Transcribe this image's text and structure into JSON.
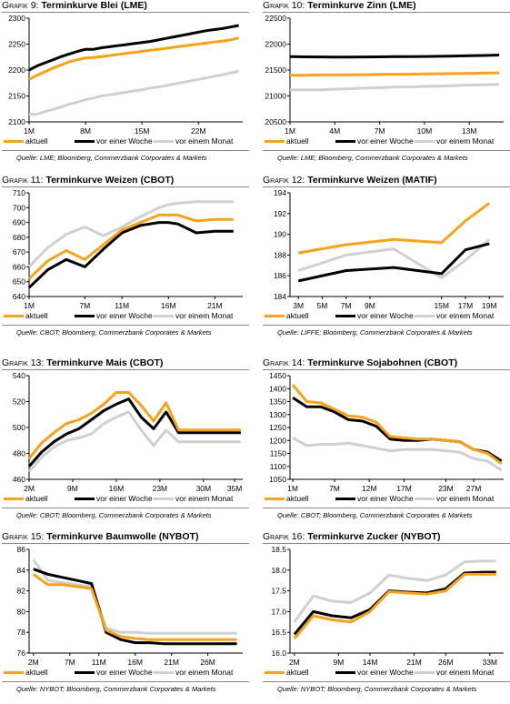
{
  "legend": {
    "series": [
      "aktuell",
      "vor einer Woche",
      "vor einem Monat"
    ]
  },
  "colors": {
    "aktuell": "#F7A21B",
    "vor einer Woche": "#000000",
    "vor einem Monat": "#D0D0D0"
  },
  "charts": [
    {
      "title_prefix": "Grafik 9:",
      "title": "Terminkurve Blei (LME)",
      "source": "Quelle: LME; Bloomberg, Commerzbank Corporates & Markets",
      "chart_data": {
        "type": "line",
        "x": [
          1,
          2,
          3,
          4,
          5,
          6,
          7,
          8,
          9,
          10,
          11,
          12,
          13,
          14,
          15,
          16,
          17,
          18,
          19,
          20,
          21,
          22,
          23,
          24,
          25,
          26,
          27
        ],
        "xticks": [
          1,
          8,
          15,
          22
        ],
        "xticklabels": [
          "1M",
          "8M",
          "15M",
          "22M"
        ],
        "xlim": [
          1,
          27.5
        ],
        "ylim": [
          2100,
          2300
        ],
        "yticks": [
          2100,
          2150,
          2200,
          2250,
          2300
        ],
        "yticklabels": [
          "2100",
          "2150",
          "2200",
          "2250",
          "2300"
        ],
        "series": [
          {
            "name": "aktuell",
            "values": [
              2182,
              2190,
              2197,
              2204,
              2210,
              2216,
              2220,
              2223,
              2224,
              2226,
              2228,
              2230,
              2232,
              2234,
              2236,
              2238,
              2240,
              2242,
              2244,
              2246,
              2248,
              2250,
              2252,
              2254,
              2256,
              2258,
              2262
            ]
          },
          {
            "name": "vor einer Woche",
            "values": [
              2200,
              2208,
              2214,
              2220,
              2226,
              2231,
              2236,
              2240,
              2240,
              2243,
              2245,
              2247,
              2249,
              2251,
              2253,
              2255,
              2258,
              2261,
              2264,
              2267,
              2270,
              2273,
              2276,
              2278,
              2280,
              2283,
              2286
            ]
          },
          {
            "name": "vor einem Monat",
            "values": [
              2114,
              2115,
              2120,
              2124,
              2129,
              2134,
              2138,
              2143,
              2146,
              2150,
              2152,
              2155,
              2157,
              2160,
              2162,
              2165,
              2167,
              2170,
              2173,
              2176,
              2179,
              2182,
              2185,
              2188,
              2191,
              2194,
              2198
            ]
          }
        ]
      }
    },
    {
      "title_prefix": "Grafik 10:",
      "title": "Terminkurve Zinn (LME)",
      "source": "Quelle: LME; Bloomberg, Commerzbank Corporates & Markets",
      "chart_data": {
        "type": "line",
        "x": [
          1,
          2,
          3,
          4,
          5,
          6,
          7,
          8,
          9,
          10,
          11,
          12,
          13,
          14,
          15
        ],
        "xticks": [
          1,
          4,
          7,
          10,
          13
        ],
        "xticklabels": [
          "1M",
          "4M",
          "7M",
          "10M",
          "13M"
        ],
        "xlim": [
          1,
          15.3
        ],
        "ylim": [
          20500,
          22500
        ],
        "yticks": [
          20500,
          21000,
          21500,
          22000,
          22500
        ],
        "yticklabels": [
          "20500",
          "21000",
          "21500",
          "22000",
          "22500"
        ],
        "series": [
          {
            "name": "aktuell",
            "values": [
              21400,
              21400,
              21405,
              21405,
              21408,
              21410,
              21415,
              21418,
              21420,
              21425,
              21428,
              21432,
              21435,
              21440,
              21445
            ]
          },
          {
            "name": "vor einer Woche",
            "values": [
              21760,
              21755,
              21752,
              21750,
              21750,
              21752,
              21755,
              21758,
              21760,
              21762,
              21765,
              21770,
              21775,
              21780,
              21790
            ]
          },
          {
            "name": "vor einem Monat",
            "values": [
              21120,
              21115,
              21120,
              21130,
              21140,
              21150,
              21160,
              21170,
              21175,
              21185,
              21190,
              21200,
              21210,
              21215,
              21225
            ]
          }
        ]
      }
    },
    {
      "title_prefix": "Grafik 11:",
      "title": "Terminkurve Weizen (CBOT)",
      "source": "Quelle: CBOT; Bloomberg, Commerzbank Corporates & Markets",
      "chart_data": {
        "type": "line",
        "x": [
          1,
          3,
          5,
          7,
          9,
          11,
          13,
          15,
          16,
          17,
          19,
          21,
          23
        ],
        "xticks": [
          1,
          7,
          11,
          16,
          21
        ],
        "xticklabels": [
          "1M",
          "7M",
          "11M",
          "16M",
          "21M"
        ],
        "xlim": [
          1,
          24
        ],
        "ylim": [
          640,
          710
        ],
        "yticks": [
          640,
          650,
          660,
          670,
          680,
          690,
          700,
          710
        ],
        "yticklabels": [
          "640",
          "650",
          "660",
          "670",
          "680",
          "690",
          "700",
          "710"
        ],
        "series": [
          {
            "name": "aktuell",
            "values": [
              652,
              664,
              671,
              665,
              675,
              685,
              690,
              695,
              695,
              695,
              691,
              692,
              692
            ]
          },
          {
            "name": "vor einer Woche",
            "values": [
              646,
              658,
              665,
              660,
              672,
              683,
              688,
              690,
              690,
              689,
              683,
              684,
              684
            ]
          },
          {
            "name": "vor einem Monat",
            "values": [
              660,
              673,
              682,
              687,
              681,
              687,
              694,
              700,
              702,
              703,
              704,
              704,
              704
            ]
          }
        ]
      }
    },
    {
      "title_prefix": "Grafik 12:",
      "title": "Terminkurve Weizen (MATIF)",
      "source": "Quelle: LIFFE; Bloomberg, Commerzbank Corporates & Markets",
      "chart_data": {
        "type": "line",
        "x": [
          3,
          7,
          11,
          15,
          17,
          19
        ],
        "xticks": [
          3,
          5,
          7,
          9,
          15,
          17,
          19
        ],
        "xticklabels": [
          "3M",
          "5M",
          "7M",
          "9M",
          "15M",
          "17M",
          "19M"
        ],
        "xlim": [
          2.3,
          20.2
        ],
        "ylim": [
          184,
          194
        ],
        "yticks": [
          184,
          186,
          188,
          190,
          192,
          194
        ],
        "yticklabels": [
          "184",
          "186",
          "188",
          "190",
          "192",
          "194"
        ],
        "series": [
          {
            "name": "aktuell",
            "values": [
              188.2,
              189,
              189.5,
              189.2,
              191.3,
              193
            ]
          },
          {
            "name": "vor einer Woche",
            "values": [
              185.5,
              186.5,
              186.8,
              186.2,
              188.5,
              189.1
            ]
          },
          {
            "name": "vor einem Monat",
            "values": [
              186.5,
              188,
              188.6,
              185.8,
              187.5,
              189.5
            ]
          }
        ]
      }
    },
    {
      "title_prefix": "Grafik 13:",
      "title": "Terminkurve Mais (CBOT)",
      "source": "Quelle: CBOT; Bloomberg, Commerzbank Corporates & Markets",
      "chart_data": {
        "type": "line",
        "x": [
          2,
          4,
          6,
          8,
          10,
          12,
          14,
          16,
          18,
          20,
          22,
          24,
          26,
          28,
          30,
          32,
          34,
          36
        ],
        "xticks": [
          2,
          9,
          16,
          23,
          30,
          35
        ],
        "xticklabels": [
          "2M",
          "9M",
          "16M",
          "23M",
          "30M",
          "35M"
        ],
        "xlim": [
          2,
          36.3
        ],
        "ylim": [
          460,
          540
        ],
        "yticks": [
          460,
          480,
          500,
          520,
          540
        ],
        "yticklabels": [
          "460",
          "480",
          "500",
          "520",
          "540"
        ],
        "series": [
          {
            "name": "aktuell",
            "values": [
              476,
              488,
              496,
              503,
              506,
              511,
              518,
              527,
              527,
              517,
              505,
              519,
              498,
              498,
              498,
              498,
              498,
              498
            ]
          },
          {
            "name": "vor einer Woche",
            "values": [
              470,
              481,
              489,
              495,
              499,
              506,
              513,
              518,
              522,
              508,
              499,
              512,
              496,
              496,
              496,
              496,
              496,
              496
            ]
          },
          {
            "name": "vor einem Monat",
            "values": [
              466,
              477,
              485,
              490,
              492,
              495,
              503,
              508,
              512,
              498,
              486,
              498,
              489,
              489,
              489,
              489,
              489,
              489
            ]
          }
        ]
      }
    },
    {
      "title_prefix": "Grafik 14:",
      "title": "Terminkurve Sojabohnen (CBOT)",
      "source": "Quelle: CBOT; Bloomberg, Commerzbank Corporates & Markets",
      "chart_data": {
        "type": "line",
        "x": [
          1,
          3,
          5,
          7,
          9,
          11,
          13,
          15,
          17,
          19,
          21,
          23,
          25,
          27,
          29,
          31
        ],
        "xticks": [
          1,
          7,
          12,
          17,
          23,
          27
        ],
        "xticklabels": [
          "1M",
          "7M",
          "12M",
          "17M",
          "23M",
          "27M"
        ],
        "xlim": [
          0.6,
          31.3
        ],
        "ylim": [
          1050,
          1450
        ],
        "yticks": [
          1050,
          1100,
          1150,
          1200,
          1250,
          1300,
          1350,
          1400,
          1450
        ],
        "yticklabels": [
          "1050",
          "1100",
          "1150",
          "1200",
          "1250",
          "1300",
          "1350",
          "1400",
          "1450"
        ],
        "series": [
          {
            "name": "aktuell",
            "values": [
              1415,
              1350,
              1345,
              1320,
              1295,
              1290,
              1270,
              1215,
              1210,
              1205,
              1205,
              1200,
              1195,
              1165,
              1150,
              1110
            ]
          },
          {
            "name": "vor einer Woche",
            "values": [
              1365,
              1330,
              1330,
              1310,
              1280,
              1275,
              1255,
              1205,
              1200,
              1200,
              1205,
              1200,
              1195,
              1165,
              1155,
              1120
            ]
          },
          {
            "name": "vor einem Monat",
            "values": [
              1210,
              1180,
              1185,
              1185,
              1190,
              1180,
              1170,
              1160,
              1165,
              1165,
              1165,
              1160,
              1155,
              1130,
              1120,
              1085
            ]
          }
        ]
      }
    },
    {
      "title_prefix": "Grafik 15:",
      "title": "Terminkurve Baumwolle (NYBOT)",
      "source": "Quelle: NYBOT; Bloomberg, Commerzbank Corporates & Markets",
      "chart_data": {
        "type": "line",
        "x": [
          2,
          4,
          6,
          8,
          10,
          12,
          14,
          16,
          18,
          20,
          22,
          24,
          26,
          28,
          30
        ],
        "xticks": [
          2,
          7,
          11,
          16,
          21,
          26
        ],
        "xticklabels": [
          "2M",
          "7M",
          "11M",
          "16M",
          "21M",
          "26M"
        ],
        "xlim": [
          1.4,
          30.8
        ],
        "ylim": [
          76,
          86
        ],
        "yticks": [
          76,
          78,
          80,
          82,
          84,
          86
        ],
        "yticklabels": [
          "76",
          "78",
          "80",
          "82",
          "84",
          "86"
        ],
        "series": [
          {
            "name": "aktuell",
            "values": [
              83.6,
              82.6,
              82.6,
              82.4,
              82.2,
              78.2,
              77.6,
              77.4,
              77.3,
              77.3,
              77.3,
              77.3,
              77.3,
              77.3,
              77.3
            ]
          },
          {
            "name": "vor einer Woche",
            "values": [
              84.1,
              83.6,
              83.3,
              83.0,
              82.7,
              78,
              77.3,
              77.0,
              77.0,
              76.9,
              76.9,
              76.9,
              76.9,
              76.9,
              76.9
            ]
          },
          {
            "name": "vor einem Monat",
            "values": [
              85,
              83,
              82.8,
              82.6,
              82.4,
              78.4,
              78,
              78,
              77.9,
              77.9,
              77.9,
              77.9,
              77.9,
              77.9,
              77.9
            ]
          }
        ]
      }
    },
    {
      "title_prefix": "Grafik 16:",
      "title": "Terminkurve Zucker (NYBOT)",
      "source": "Quelle: NYBOT; Bloomberg, Commerzbank Corporates & Markets",
      "chart_data": {
        "type": "line",
        "x": [
          2,
          5,
          8,
          11,
          14,
          17,
          20,
          23,
          26,
          29,
          32,
          34
        ],
        "xticks": [
          2,
          9,
          14,
          21,
          26,
          33
        ],
        "xticklabels": [
          "2M",
          "9M",
          "14M",
          "21M",
          "26M",
          "33M"
        ],
        "xlim": [
          1.3,
          35.2
        ],
        "ylim": [
          16.0,
          18.5
        ],
        "yticks": [
          16.0,
          16.5,
          17.0,
          17.5,
          18.0,
          18.5
        ],
        "yticklabels": [
          "16.0",
          "16.5",
          "17.0",
          "17.5",
          "18.0",
          "18.5"
        ],
        "series": [
          {
            "name": "aktuell",
            "values": [
              16.35,
              16.9,
              16.8,
              16.75,
              17.0,
              17.48,
              17.45,
              17.42,
              17.5,
              17.9,
              17.9,
              17.9
            ]
          },
          {
            "name": "vor einer Woche",
            "values": [
              16.45,
              17.0,
              16.9,
              16.85,
              17.05,
              17.5,
              17.47,
              17.45,
              17.55,
              17.93,
              17.95,
              17.95
            ]
          },
          {
            "name": "vor einem Monat",
            "values": [
              16.75,
              17.38,
              17.25,
              17.22,
              17.45,
              17.88,
              17.8,
              17.75,
              17.88,
              18.2,
              18.22,
              18.22
            ]
          }
        ]
      }
    }
  ]
}
